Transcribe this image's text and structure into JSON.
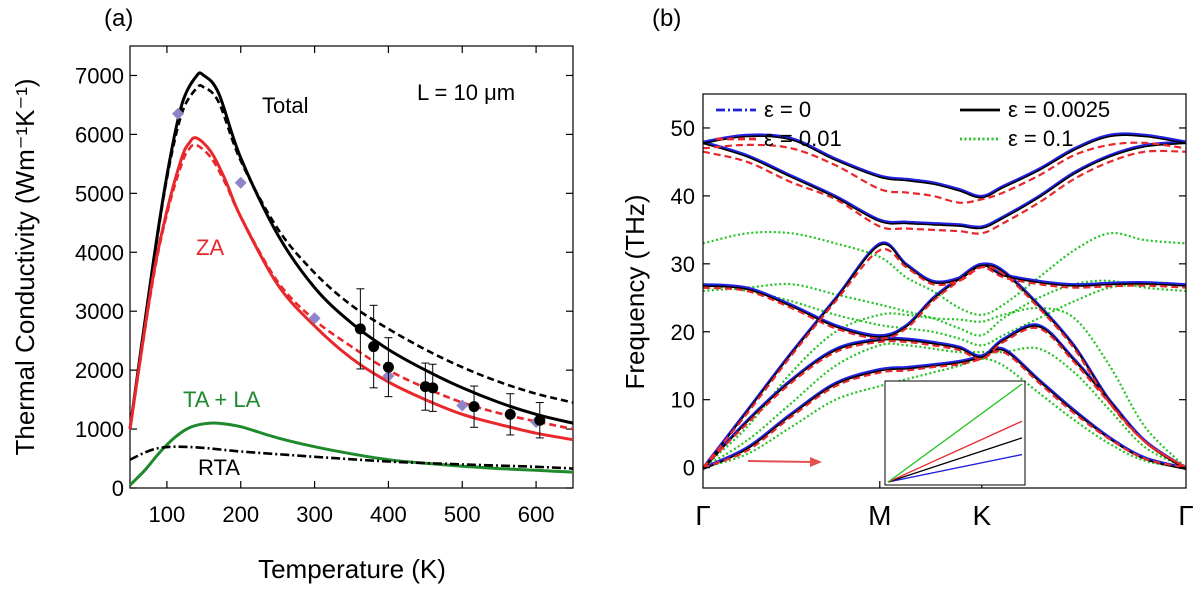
{
  "chart_data": [
    {
      "panel_label": "(a)",
      "type": "line",
      "title": "",
      "xlabel": "Temperature (K)",
      "ylabel": "Thermal Conductivity (Wm⁻¹K⁻¹)",
      "xlim": [
        50,
        650
      ],
      "ylim": [
        0,
        7500
      ],
      "xticks": [
        100,
        200,
        300,
        400,
        500,
        600
      ],
      "yticks": [
        0,
        1000,
        2000,
        3000,
        4000,
        5000,
        6000,
        7000
      ],
      "annotation": "L = 10 μm",
      "series": [
        {
          "name": "Total",
          "style": "solid",
          "color": "#000000",
          "x": [
            50,
            80,
            100,
            120,
            140,
            150,
            170,
            200,
            250,
            300,
            350,
            400,
            450,
            500,
            550,
            600,
            650
          ],
          "y": [
            1000,
            3700,
            5300,
            6500,
            6990,
            7000,
            6700,
            5600,
            4300,
            3400,
            2800,
            2350,
            2000,
            1700,
            1450,
            1250,
            1100
          ]
        },
        {
          "name": "Total (dashed)",
          "style": "dashed",
          "color": "#000000",
          "x": [
            50,
            80,
            100,
            120,
            140,
            150,
            170,
            200,
            250,
            300,
            350,
            400,
            450,
            500,
            550,
            600,
            650
          ],
          "y": [
            1000,
            3650,
            5250,
            6350,
            6780,
            6800,
            6550,
            5550,
            4400,
            3650,
            3100,
            2700,
            2350,
            2050,
            1800,
            1600,
            1450
          ]
        },
        {
          "name": "ZA",
          "style": "solid",
          "color": "#e8282c",
          "x": [
            50,
            80,
            100,
            120,
            130,
            140,
            160,
            180,
            200,
            250,
            300,
            350,
            400,
            450,
            500,
            550,
            600,
            650
          ],
          "y": [
            1000,
            3500,
            4700,
            5600,
            5850,
            5940,
            5700,
            5200,
            4600,
            3450,
            2750,
            2200,
            1800,
            1500,
            1250,
            1080,
            930,
            820
          ]
        },
        {
          "name": "ZA (dashed)",
          "style": "dashed",
          "color": "#e8282c",
          "x": [
            50,
            80,
            100,
            120,
            130,
            140,
            160,
            180,
            200,
            250,
            300,
            350,
            400,
            450,
            500,
            550,
            600,
            650
          ],
          "y": [
            1000,
            3450,
            4650,
            5500,
            5750,
            5820,
            5600,
            5150,
            4600,
            3500,
            2850,
            2400,
            2000,
            1700,
            1450,
            1270,
            1130,
            1000
          ]
        },
        {
          "name": "TA + LA",
          "style": "solid",
          "color": "#1e8a2c",
          "x": [
            50,
            70,
            90,
            110,
            130,
            150,
            170,
            200,
            250,
            300,
            350,
            400,
            450,
            500,
            550,
            600,
            650
          ],
          "y": [
            50,
            300,
            600,
            850,
            1020,
            1090,
            1100,
            1040,
            850,
            700,
            580,
            480,
            420,
            370,
            330,
            300,
            270
          ]
        },
        {
          "name": "RTA",
          "style": "dashdot",
          "color": "#000000",
          "x": [
            50,
            80,
            110,
            150,
            200,
            300,
            400,
            500,
            600,
            650
          ],
          "y": [
            480,
            650,
            700,
            680,
            620,
            530,
            450,
            400,
            360,
            330
          ]
        }
      ],
      "experimental_diamonds": {
        "color": "#8f84c8",
        "x": [
          115,
          200,
          300,
          400,
          500,
          600
        ],
        "y": [
          6350,
          5180,
          2880,
          1900,
          1400,
          1120
        ]
      },
      "experimental_circles": {
        "color": "#000000",
        "x": [
          362,
          380,
          400,
          450,
          460,
          516,
          565,
          605
        ],
        "y": [
          2700,
          2400,
          2050,
          1720,
          1700,
          1380,
          1250,
          1150
        ],
        "err": [
          680,
          700,
          500,
          400,
          400,
          350,
          350,
          300
        ]
      },
      "labels": {
        "total": "Total",
        "za": "ZA",
        "tala": "TA + LA",
        "rta": "RTA"
      }
    },
    {
      "panel_label": "(b)",
      "type": "line",
      "title": "",
      "xlabel": "",
      "ylabel": "Frequency (THz)",
      "ylim": [
        -3,
        55
      ],
      "yticks": [
        0,
        10,
        20,
        30,
        40,
        50
      ],
      "xticks_labels": [
        "Γ",
        "M",
        "K",
        "Γ"
      ],
      "xticks_pos": [
        0,
        1,
        1.577,
        2.732
      ],
      "legend": [
        {
          "label": "ε = 0",
          "style": "dashdot",
          "color": "#2020e0"
        },
        {
          "label": "ε = 0.0025",
          "style": "solid",
          "color": "#000000"
        },
        {
          "label": "ε = 0.01",
          "style": "dashed",
          "color": "#e8282c"
        },
        {
          "label": "ε = 0.1",
          "style": "dotted",
          "color": "#22c422"
        }
      ],
      "bands": {
        "q": [
          0,
          0.25,
          0.5,
          0.75,
          1.0,
          1.15,
          1.3,
          1.45,
          1.577,
          1.7,
          1.9,
          2.1,
          2.3,
          2.5,
          2.732
        ],
        "unstrained": [
          [
            0,
            3,
            8,
            12.5,
            14.5,
            14.8,
            15.2,
            15.7,
            16.5,
            17.5,
            13,
            8.5,
            4.5,
            1.5,
            0
          ],
          [
            0,
            7,
            13,
            17.5,
            19,
            19,
            18.5,
            17.8,
            16.5,
            19,
            21,
            16,
            10,
            4,
            0
          ],
          [
            0,
            8.5,
            17,
            25,
            33,
            30,
            27.5,
            28,
            30,
            29,
            24,
            18,
            10,
            4,
            0
          ],
          [
            27,
            26.5,
            24,
            21,
            19.5,
            21,
            25,
            28,
            30,
            28.5,
            27.5,
            27,
            27.2,
            27.3,
            27
          ],
          [
            48,
            46,
            43,
            40,
            36.5,
            36.2,
            36,
            35.8,
            35.5,
            37,
            40,
            43.5,
            46,
            47.5,
            48
          ],
          [
            48,
            49,
            48.5,
            45.5,
            43,
            42.5,
            42,
            41,
            40,
            41.5,
            44,
            47,
            49,
            49,
            48
          ]
        ],
        "strain_0p01": [
          [
            0,
            2.5,
            7.5,
            12,
            14,
            14.3,
            14.8,
            15.2,
            16,
            17,
            12.5,
            8,
            4.2,
            1.3,
            0
          ],
          [
            0,
            6.5,
            12.5,
            17,
            18.5,
            18.5,
            18,
            17.3,
            16,
            18.5,
            20.5,
            15.5,
            9.5,
            3.8,
            0
          ],
          [
            0,
            8,
            16.5,
            24.5,
            32,
            29.5,
            27,
            27.5,
            29.5,
            28.5,
            23.5,
            17.5,
            9.5,
            3.8,
            0
          ],
          [
            26.5,
            26,
            23.5,
            20.5,
            19,
            20.5,
            24.5,
            27.5,
            29.5,
            28,
            27,
            26.5,
            26.7,
            26.8,
            26.5
          ],
          [
            46.5,
            45,
            42,
            39.5,
            35.5,
            35.2,
            35,
            34.8,
            34.5,
            36,
            39,
            42.5,
            45,
            46.5,
            46.5
          ],
          [
            47,
            47.5,
            47,
            44.5,
            41,
            40.5,
            40,
            39,
            39.5,
            40.5,
            43,
            46,
            47.5,
            47.8,
            47
          ]
        ],
        "strain_0p1": [
          [
            0,
            2,
            6,
            10,
            12,
            13,
            14,
            15,
            16,
            15,
            11,
            7,
            3.5,
            1,
            0
          ],
          [
            0,
            4,
            9.5,
            15,
            18,
            18,
            17.5,
            17,
            17,
            17,
            17.5,
            14,
            8.5,
            3,
            0
          ],
          [
            0,
            6,
            14,
            20,
            22.5,
            22.5,
            22,
            21.8,
            21.5,
            22.5,
            23.5,
            22,
            15,
            6,
            0
          ],
          [
            33,
            34.5,
            34.5,
            33,
            31,
            28,
            26,
            23.5,
            22.5,
            24,
            28,
            32,
            34.5,
            33.5,
            33
          ],
          [
            26,
            26.5,
            27,
            25.5,
            24,
            23,
            22,
            20.5,
            19.5,
            22,
            25,
            27,
            27.5,
            26.5,
            26
          ],
          [
            27,
            26,
            24.5,
            22.5,
            21,
            20.5,
            20,
            19,
            18,
            19.5,
            22,
            24.5,
            26.5,
            27,
            27
          ]
        ]
      },
      "inset": {
        "lines": [
          {
            "color": "#2020e0",
            "end_frac": 0.28
          },
          {
            "color": "#000000",
            "end_frac": 0.45
          },
          {
            "color": "#e8282c",
            "end_frac": 0.62
          },
          {
            "color": "#22c422",
            "end_frac": 1.0
          }
        ]
      }
    }
  ]
}
